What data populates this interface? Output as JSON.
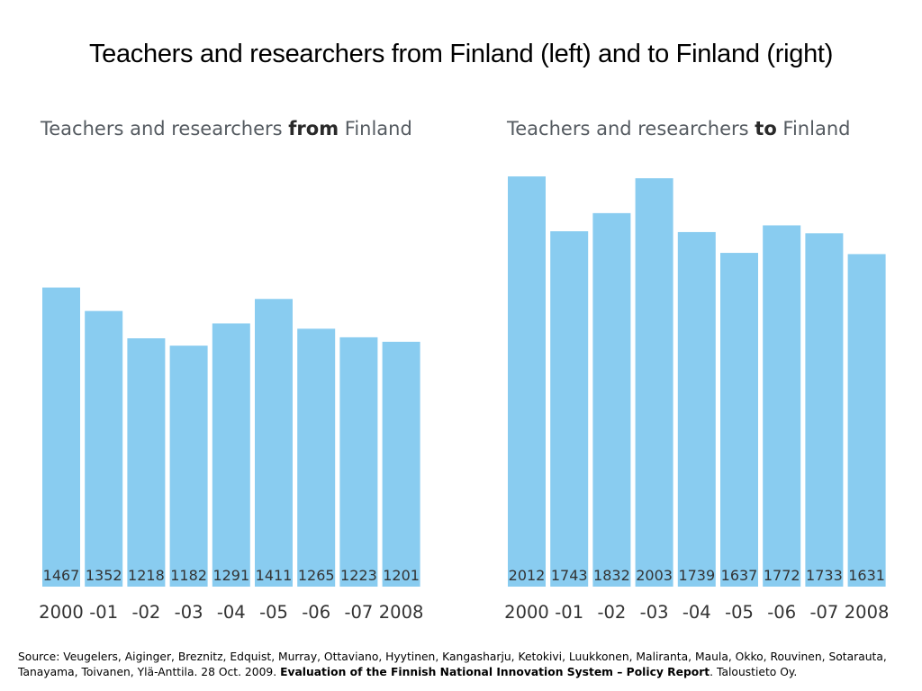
{
  "page": {
    "title": "Teachers and researchers from Finland (left) and to Finland (right)"
  },
  "source": {
    "prefix": "Source: Veugelers, Aiginger, Breznitz, Edquist, Murray, Ottaviano, Hyytinen, Kangasharju, Ketokivi, Luukkonen, Maliranta, Maula, Okko, Rouvinen, Sotarauta, Tanayama, Toivanen, Ylä-Anttila. 28 Oct. 2009.",
    "bold": "Evaluation of the Finnish National Innovation System – Policy Report",
    "suffix": ". Taloustieto Oy."
  },
  "colors": {
    "bar": "#89ccf0"
  },
  "chart_data": [
    {
      "type": "bar",
      "title_pre": "Teachers and researchers ",
      "title_bold": "from",
      "title_post": " Finland",
      "categories": [
        "2000",
        "-01",
        "-02",
        "-03",
        "-04",
        "-05",
        "-06",
        "-07",
        "2008"
      ],
      "values": [
        1467,
        1352,
        1218,
        1182,
        1291,
        1411,
        1265,
        1223,
        1201
      ],
      "ylim": [
        0,
        2100
      ],
      "grid": false
    },
    {
      "type": "bar",
      "title_pre": "Teachers and researchers ",
      "title_bold": "to",
      "title_post": " Finland",
      "categories": [
        "2000",
        "-01",
        "-02",
        "-03",
        "-04",
        "-05",
        "-06",
        "-07",
        "2008"
      ],
      "values": [
        2012,
        1743,
        1832,
        2003,
        1739,
        1637,
        1772,
        1733,
        1631
      ],
      "ylim": [
        0,
        2100
      ],
      "grid": false
    }
  ]
}
